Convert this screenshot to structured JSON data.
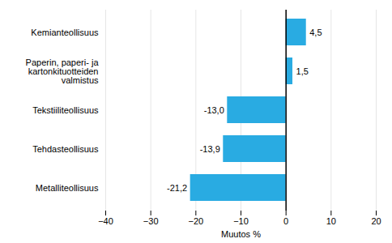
{
  "chart_data": {
    "type": "bar",
    "orientation": "horizontal",
    "categories": [
      "Metalliteollisuus",
      "Tehdasteollisuus",
      "Tekstiiliteollisuus",
      "Paperin, paperi- ja kartonkituotteiden valmistus",
      "Kemianteollisuus"
    ],
    "values": [
      -21.2,
      -13.9,
      -13.0,
      1.5,
      4.5
    ],
    "value_labels": [
      "-21,2",
      "-13,9",
      "-13,0",
      "1,5",
      "4,5"
    ],
    "data_labels": true,
    "color": "#29ABE2",
    "xlabel": "Muutos %",
    "xlim": [
      -40,
      20
    ],
    "xticks": [
      -40,
      -30,
      -20,
      -10,
      0,
      10,
      20
    ],
    "grid": true
  }
}
